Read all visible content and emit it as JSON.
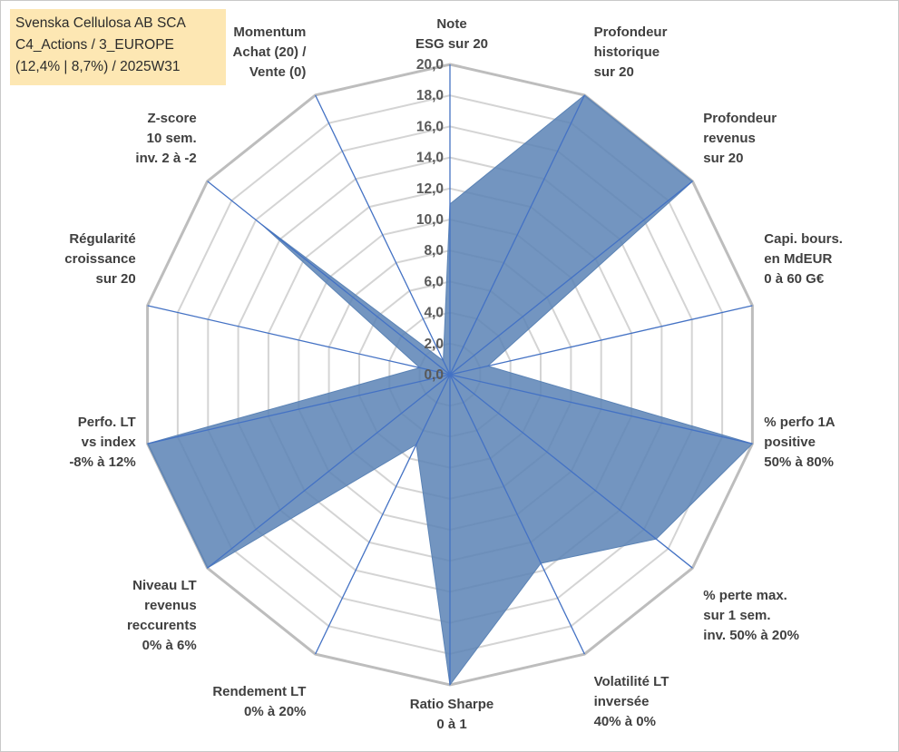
{
  "info": {
    "line1": "Svenska Cellulosa AB SCA",
    "line2": "C4_Actions / 3_EUROPE",
    "line3": "(12,4% | 8,7%) / 2025W31"
  },
  "colors": {
    "fill": "#5b83b5",
    "axis_line": "#4472c4",
    "grid": "#c0c0c0",
    "infobox_bg": "#fde7b3"
  },
  "chart_data": {
    "type": "radar",
    "rlim": [
      0,
      20
    ],
    "grid": true,
    "ticks": [
      "0,0",
      "2,0",
      "4,0",
      "6,0",
      "8,0",
      "10,0",
      "12,0",
      "14,0",
      "16,0",
      "18,0",
      "20,0"
    ],
    "axes": [
      {
        "label": [
          "Note",
          "ESG sur 20"
        ]
      },
      {
        "label": [
          "Profondeur",
          "historique",
          "sur 20"
        ]
      },
      {
        "label": [
          "Profondeur",
          "revenus",
          "sur 20"
        ]
      },
      {
        "label": [
          "Capi. bours.",
          "en MdEUR",
          "0 à 60 G€"
        ]
      },
      {
        "label": [
          "% perfo 1A",
          "positive",
          "50% à 80%"
        ]
      },
      {
        "label": [
          "% perte max.",
          "sur 1 sem.",
          "inv. 50% à 20%"
        ]
      },
      {
        "label": [
          "Volatilité LT",
          "inversée",
          "40% à 0%"
        ]
      },
      {
        "label": [
          "Ratio Sharpe",
          "0 à 1"
        ]
      },
      {
        "label": [
          "Rendement LT",
          "0% à 20%"
        ]
      },
      {
        "label": [
          "Niveau LT",
          "revenus",
          "reccurents",
          "0% à 6%"
        ]
      },
      {
        "label": [
          "Perfo. LT",
          "vs index",
          "-8% à 12%"
        ]
      },
      {
        "label": [
          "Régularité",
          "croissance",
          "sur 20"
        ]
      },
      {
        "label": [
          "Z-score",
          "10 sem.",
          "inv. 2 à -2"
        ]
      },
      {
        "label": [
          "Momentum",
          "Achat (20) /",
          "Vente (0)"
        ]
      }
    ],
    "series": [
      {
        "values": [
          11.0,
          20.0,
          20.0,
          2.5,
          20.0,
          17.0,
          13.5,
          20.0,
          5.0,
          20.0,
          20.0,
          2.0,
          15.5,
          1.0
        ]
      }
    ]
  }
}
